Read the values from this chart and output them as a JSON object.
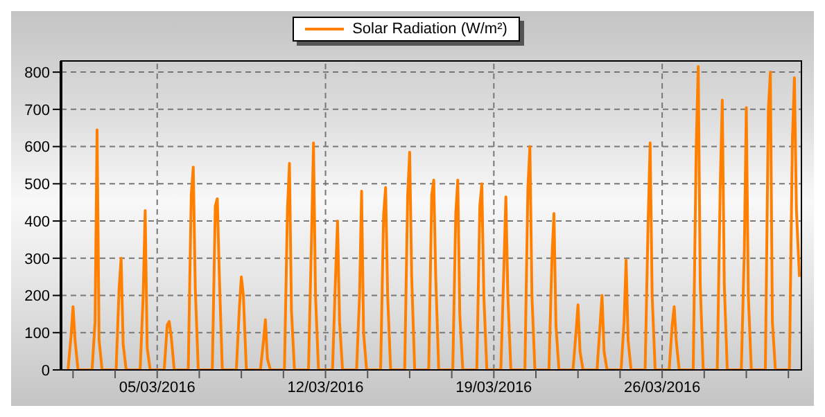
{
  "chart_data": {
    "type": "line",
    "x": [
      "2016-03-01T07:00",
      "2016-03-01T10:00",
      "2016-03-01T12:00",
      "2016-03-01T14:00",
      "2016-03-01T17:00",
      "2016-03-02T07:00",
      "2016-03-02T10:00",
      "2016-03-02T12:00",
      "2016-03-02T14:00",
      "2016-03-02T17:00",
      "2016-03-03T07:00",
      "2016-03-03T10:00",
      "2016-03-03T12:00",
      "2016-03-03T14:00",
      "2016-03-03T17:00",
      "2016-03-04T07:00",
      "2016-03-04T10:00",
      "2016-03-04T12:00",
      "2016-03-04T14:00",
      "2016-03-04T17:00",
      "2016-03-05T07:00",
      "2016-03-05T10:00",
      "2016-03-05T12:00",
      "2016-03-05T14:00",
      "2016-03-05T17:00",
      "2016-03-06T07:00",
      "2016-03-06T10:00",
      "2016-03-06T12:00",
      "2016-03-06T14:00",
      "2016-03-06T17:00",
      "2016-03-07T07:00",
      "2016-03-07T10:00",
      "2016-03-07T12:00",
      "2016-03-07T14:00",
      "2016-03-07T17:00",
      "2016-03-08T07:00",
      "2016-03-08T10:00",
      "2016-03-08T12:00",
      "2016-03-08T14:00",
      "2016-03-08T17:00",
      "2016-03-09T07:00",
      "2016-03-09T10:00",
      "2016-03-09T12:00",
      "2016-03-09T14:00",
      "2016-03-09T17:00",
      "2016-03-10T07:00",
      "2016-03-10T10:00",
      "2016-03-10T12:00",
      "2016-03-10T14:00",
      "2016-03-10T17:00",
      "2016-03-11T07:00",
      "2016-03-11T10:00",
      "2016-03-11T12:00",
      "2016-03-11T14:00",
      "2016-03-11T17:00",
      "2016-03-12T07:00",
      "2016-03-12T10:00",
      "2016-03-12T12:00",
      "2016-03-12T14:00",
      "2016-03-12T17:00",
      "2016-03-13T07:00",
      "2016-03-13T10:00",
      "2016-03-13T12:00",
      "2016-03-13T14:00",
      "2016-03-13T17:00",
      "2016-03-14T07:00",
      "2016-03-14T10:00",
      "2016-03-14T12:00",
      "2016-03-14T14:00",
      "2016-03-14T17:00",
      "2016-03-15T07:00",
      "2016-03-15T10:00",
      "2016-03-15T12:00",
      "2016-03-15T14:00",
      "2016-03-15T17:00",
      "2016-03-16T07:00",
      "2016-03-16T10:00",
      "2016-03-16T12:00",
      "2016-03-16T14:00",
      "2016-03-16T17:00",
      "2016-03-17T07:00",
      "2016-03-17T10:00",
      "2016-03-17T12:00",
      "2016-03-17T14:00",
      "2016-03-17T17:00",
      "2016-03-18T07:00",
      "2016-03-18T10:00",
      "2016-03-18T12:00",
      "2016-03-18T14:00",
      "2016-03-18T17:00",
      "2016-03-19T07:00",
      "2016-03-19T10:00",
      "2016-03-19T12:00",
      "2016-03-19T14:00",
      "2016-03-19T17:00",
      "2016-03-20T07:00",
      "2016-03-20T10:00",
      "2016-03-20T12:00",
      "2016-03-20T14:00",
      "2016-03-20T17:00",
      "2016-03-21T07:00",
      "2016-03-21T10:00",
      "2016-03-21T12:00",
      "2016-03-21T14:00",
      "2016-03-21T17:00",
      "2016-03-22T07:00",
      "2016-03-22T10:00",
      "2016-03-22T12:00",
      "2016-03-22T14:00",
      "2016-03-22T17:00",
      "2016-03-23T07:00",
      "2016-03-23T10:00",
      "2016-03-23T12:00",
      "2016-03-23T14:00",
      "2016-03-23T17:00",
      "2016-03-24T07:00",
      "2016-03-24T10:00",
      "2016-03-24T12:00",
      "2016-03-24T14:00",
      "2016-03-24T17:00",
      "2016-03-25T07:00",
      "2016-03-25T10:00",
      "2016-03-25T12:00",
      "2016-03-25T14:00",
      "2016-03-25T17:00",
      "2016-03-26T07:00",
      "2016-03-26T10:00",
      "2016-03-26T12:00",
      "2016-03-26T14:00",
      "2016-03-26T17:00",
      "2016-03-27T07:00",
      "2016-03-27T10:00",
      "2016-03-27T12:00",
      "2016-03-27T14:00",
      "2016-03-27T17:00",
      "2016-03-28T07:00",
      "2016-03-28T10:00",
      "2016-03-28T12:00",
      "2016-03-28T14:00",
      "2016-03-28T17:00",
      "2016-03-29T07:00",
      "2016-03-29T10:00",
      "2016-03-29T12:00",
      "2016-03-29T14:00",
      "2016-03-29T17:00",
      "2016-03-30T07:00",
      "2016-03-30T10:00",
      "2016-03-30T12:00",
      "2016-03-30T14:00",
      "2016-03-30T17:00",
      "2016-03-31T07:00",
      "2016-03-31T10:00",
      "2016-03-31T12:00",
      "2016-03-31T14:00",
      "2016-03-31T17:00"
    ],
    "series": [
      {
        "name": "Solar Radiation (W/m²)",
        "color": "#ff8000",
        "values": [
          0,
          90,
          170,
          80,
          0,
          0,
          130,
          645,
          80,
          0,
          0,
          220,
          300,
          70,
          0,
          0,
          200,
          428,
          60,
          0,
          0,
          120,
          130,
          90,
          0,
          0,
          470,
          545,
          220,
          0,
          0,
          440,
          460,
          255,
          0,
          0,
          165,
          250,
          200,
          0,
          0,
          75,
          135,
          30,
          0,
          0,
          430,
          555,
          160,
          0,
          0,
          350,
          610,
          200,
          0,
          0,
          250,
          400,
          130,
          0,
          0,
          200,
          480,
          100,
          0,
          0,
          420,
          490,
          200,
          0,
          0,
          470,
          585,
          250,
          0,
          0,
          470,
          510,
          250,
          0,
          0,
          420,
          510,
          150,
          0,
          0,
          440,
          500,
          200,
          0,
          0,
          270,
          465,
          200,
          0,
          0,
          490,
          600,
          200,
          0,
          0,
          300,
          420,
          120,
          0,
          0,
          100,
          175,
          50,
          0,
          0,
          120,
          200,
          50,
          0,
          0,
          130,
          295,
          80,
          0,
          0,
          400,
          610,
          200,
          0,
          0,
          120,
          170,
          80,
          0,
          0,
          600,
          815,
          230,
          0,
          0,
          500,
          725,
          230,
          0,
          0,
          320,
          705,
          200,
          0,
          0,
          700,
          800,
          130,
          0,
          0,
          620,
          785,
          430,
          250
        ]
      }
    ],
    "xlim": [
      "2016-03-01T00:00",
      "2016-03-31T19:00"
    ],
    "xticks": [
      {
        "value": "2016-03-01T12:00",
        "label": null
      },
      {
        "value": "2016-03-03T06:00",
        "label": null
      },
      {
        "value": "2016-03-05T00:00",
        "label": "05/03/2016"
      },
      {
        "value": "2016-03-06T18:00",
        "label": null
      },
      {
        "value": "2016-03-08T12:00",
        "label": null
      },
      {
        "value": "2016-03-10T06:00",
        "label": null
      },
      {
        "value": "2016-03-12T00:00",
        "label": "12/03/2016"
      },
      {
        "value": "2016-03-13T18:00",
        "label": null
      },
      {
        "value": "2016-03-15T12:00",
        "label": null
      },
      {
        "value": "2016-03-17T06:00",
        "label": null
      },
      {
        "value": "2016-03-19T00:00",
        "label": "19/03/2016"
      },
      {
        "value": "2016-03-20T18:00",
        "label": null
      },
      {
        "value": "2016-03-22T12:00",
        "label": null
      },
      {
        "value": "2016-03-24T06:00",
        "label": null
      },
      {
        "value": "2016-03-26T00:00",
        "label": "26/03/2016"
      },
      {
        "value": "2016-03-27T18:00",
        "label": null
      },
      {
        "value": "2016-03-29T12:00",
        "label": null
      },
      {
        "value": "2016-03-31T06:00",
        "label": null
      }
    ],
    "ylim": [
      0,
      830
    ],
    "yticks": [
      0,
      100,
      200,
      300,
      400,
      500,
      600,
      700,
      800
    ],
    "grid": true,
    "legend": "top",
    "marker": "none",
    "line_style": "solid"
  }
}
